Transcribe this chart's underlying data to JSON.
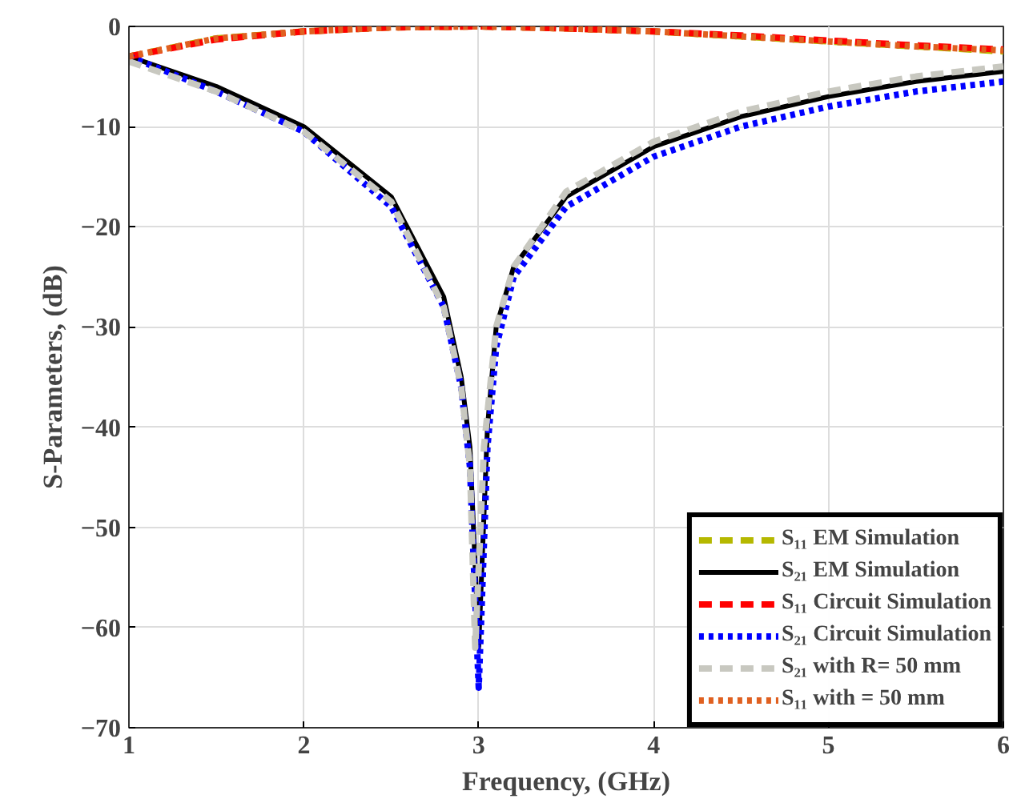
{
  "chart_data": {
    "type": "line",
    "xlabel": "Frequency, (GHz)",
    "ylabel": "S-Parameters, (dB)",
    "xlim": [
      1,
      6
    ],
    "ylim": [
      -70,
      0
    ],
    "xticks": [
      1,
      2,
      3,
      4,
      5,
      6
    ],
    "yticks": [
      -70,
      -60,
      -50,
      -40,
      -30,
      -20,
      -10,
      0
    ],
    "grid": true,
    "legend": "bottom right",
    "series": [
      {
        "name": "S₁₁ EM Simulation",
        "color": "#b5b800",
        "line_style": "dashed",
        "x": [
          1,
          1.5,
          2,
          2.5,
          3,
          3.5,
          4,
          4.5,
          5,
          5.5,
          6
        ],
        "values": [
          -3,
          -1.2,
          -0.5,
          -0.1,
          0,
          -0.2,
          -0.5,
          -1,
          -1.5,
          -2,
          -2.5
        ]
      },
      {
        "name": "S₂₁ EM Simulation",
        "color": "#000000",
        "line_style": "solid",
        "x": [
          1,
          1.5,
          2,
          2.5,
          2.8,
          2.9,
          2.95,
          3,
          3.05,
          3.1,
          3.2,
          3.5,
          4,
          4.5,
          5,
          5.5,
          6
        ],
        "values": [
          -3,
          -6,
          -10,
          -17,
          -27,
          -35,
          -42,
          -62,
          -40,
          -30,
          -24,
          -17,
          -12,
          -9,
          -7,
          -5.5,
          -4.5
        ]
      },
      {
        "name": "S₁₁ Circuit Simulation",
        "color": "#ff0000",
        "line_style": "dashed",
        "x": [
          1,
          1.5,
          2,
          2.5,
          3,
          3.5,
          4,
          4.5,
          5,
          5.5,
          6
        ],
        "values": [
          -3,
          -1.3,
          -0.5,
          -0.1,
          0,
          -0.2,
          -0.5,
          -0.9,
          -1.4,
          -1.9,
          -2.3
        ]
      },
      {
        "name": "S₂₁ Circuit Simulation",
        "color": "#0000ff",
        "line_style": "dotted",
        "x": [
          1,
          1.5,
          2,
          2.5,
          2.8,
          2.9,
          2.95,
          3,
          3.05,
          3.1,
          3.2,
          3.5,
          4,
          4.5,
          5,
          5.5,
          6
        ],
        "values": [
          -3,
          -6.5,
          -10.5,
          -18,
          -28,
          -36,
          -44,
          -66,
          -42,
          -32,
          -25,
          -18,
          -13,
          -10,
          -8,
          -6.5,
          -5.5
        ]
      },
      {
        "name": "S₂₁ with R= 50 mm",
        "color": "#c8c8c0",
        "line_style": "dashed",
        "x": [
          1,
          1.5,
          2,
          2.5,
          2.8,
          2.9,
          2.95,
          2.98,
          3.03,
          3.1,
          3.2,
          3.5,
          4,
          4.5,
          5,
          5.5,
          6
        ],
        "values": [
          -3.5,
          -6.5,
          -10.5,
          -17.5,
          -28,
          -36,
          -44,
          -62,
          -42,
          -30,
          -24,
          -16.5,
          -11.5,
          -8.5,
          -6.5,
          -5,
          -4
        ]
      },
      {
        "name": "S₁₁ with = 50 mm",
        "color": "#e06020",
        "line_style": "dotted",
        "x": [
          1,
          1.5,
          2,
          2.5,
          3,
          3.5,
          4,
          4.5,
          5,
          5.5,
          6
        ],
        "values": [
          -3,
          -1.2,
          -0.5,
          -0.1,
          0,
          -0.2,
          -0.5,
          -1,
          -1.5,
          -2,
          -2.4
        ]
      }
    ]
  }
}
